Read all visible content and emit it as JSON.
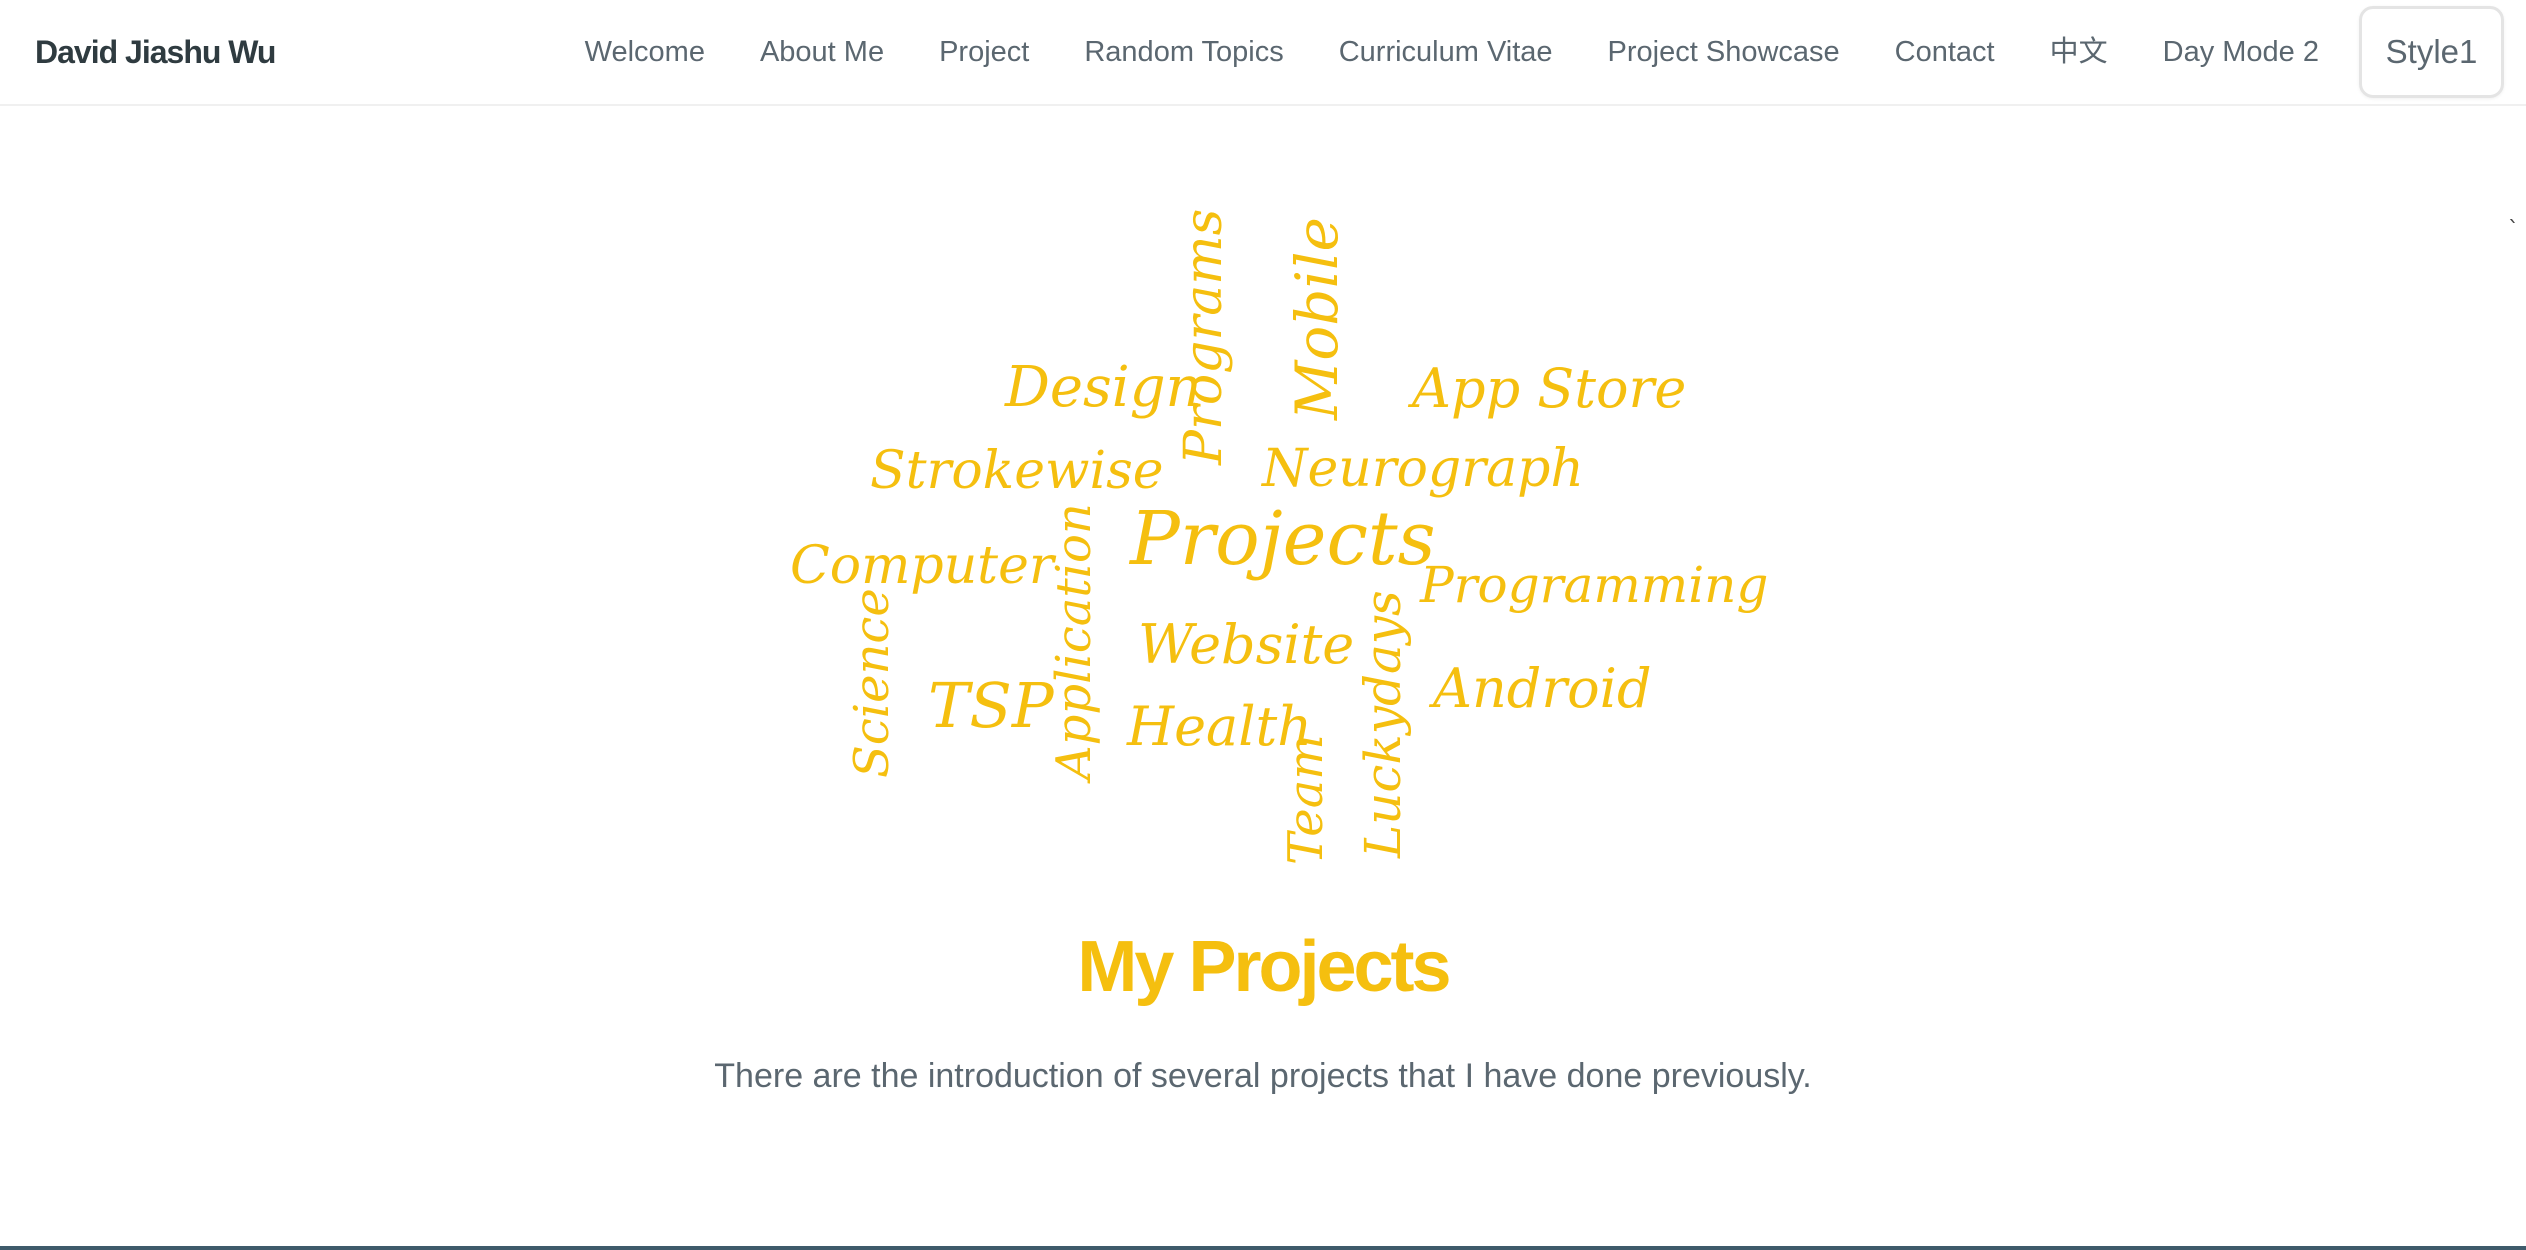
{
  "navbar": {
    "brand": "David Jiashu Wu",
    "links": [
      {
        "label": "Welcome"
      },
      {
        "label": "About Me"
      },
      {
        "label": "Project"
      },
      {
        "label": "Random Topics"
      },
      {
        "label": "Curriculum Vitae"
      },
      {
        "label": "Project Showcase"
      },
      {
        "label": "Contact"
      },
      {
        "label": "中文"
      },
      {
        "label": "Day Mode 2"
      }
    ],
    "style_button": "Style1"
  },
  "stray_mark": "`",
  "word_cloud": {
    "color": "#f5bf0f",
    "words": [
      {
        "text": "Programs"
      },
      {
        "text": "Mobile"
      },
      {
        "text": "Design"
      },
      {
        "text": "App Store"
      },
      {
        "text": "Strokewise"
      },
      {
        "text": "Neurograph"
      },
      {
        "text": "Application"
      },
      {
        "text": "Projects"
      },
      {
        "text": "Computer"
      },
      {
        "text": "Programming"
      },
      {
        "text": "Science"
      },
      {
        "text": "Website"
      },
      {
        "text": "Luckydays"
      },
      {
        "text": "TSP"
      },
      {
        "text": "Android"
      },
      {
        "text": "Health"
      },
      {
        "text": "Team"
      }
    ]
  },
  "main": {
    "title": "My Projects",
    "description": "There are the introduction of several projects that I have done previously."
  }
}
